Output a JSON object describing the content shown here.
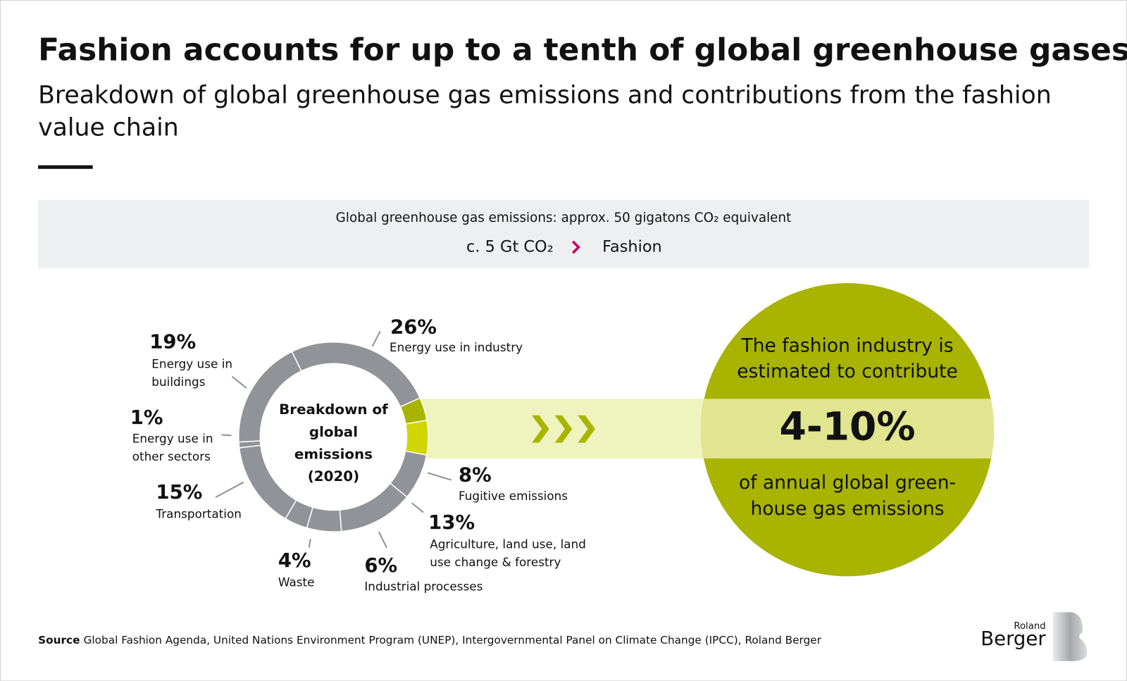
{
  "header": {
    "title": "Fashion accounts for up to a tenth of global greenhouse gases",
    "subtitle": [
      "Breakdown of global greenhouse gas emissions and contributions from the fashion",
      "value chain"
    ]
  },
  "band": {
    "line1": "Global greenhouse gas emissions: approx. 50 gigatons CO₂ equivalent",
    "amount": "c. 5 Gt CO₂",
    "target": "Fashion"
  },
  "chart_data": {
    "type": "donut",
    "center_label": [
      "Breakdown of",
      "global",
      "emissions",
      "(2020)"
    ],
    "categories": [
      [
        "Energy use in industry"
      ],
      [
        "Fugitive emissions"
      ],
      [
        "Agriculture, land use, land",
        "use change & forestry"
      ],
      [
        "Industrial processes"
      ],
      [
        "Waste"
      ],
      [
        "Transportation"
      ],
      [
        "Energy use in",
        "other sectors"
      ],
      [
        "Energy use in",
        "buildings"
      ]
    ],
    "values": [
      26,
      8,
      13,
      6,
      4,
      15,
      1,
      19
    ],
    "value_labels": [
      "26%",
      "8%",
      "13%",
      "6%",
      "4%",
      "15%",
      "1%",
      "19%"
    ],
    "color": "#909397",
    "highlight": {
      "low": 4,
      "high": 10,
      "label": "4-10%",
      "low_color": "#a8b400",
      "high_color": "#cfd600",
      "text_top": [
        "The fashion industry is",
        "estimated to contribute"
      ],
      "text_bottom": [
        "of annual global green-",
        "house gas emissions"
      ]
    }
  },
  "footer": {
    "source_label": "Source",
    "source": "Global Fashion Agenda, United Nations Environment Program (UNEP), Intergovernmental Panel on Climate Change (IPCC), Roland Berger",
    "logo_top": "Roland",
    "logo_main": "Berger"
  }
}
